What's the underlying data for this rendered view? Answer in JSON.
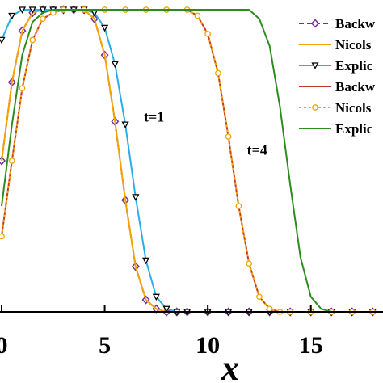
{
  "chart_data": {
    "type": "line",
    "xlabel": "x",
    "xlim": [
      0,
      18.5
    ],
    "ylim": [
      0,
      1
    ],
    "x_ticks": [
      {
        "value": 0,
        "label": "0"
      },
      {
        "value": 5,
        "label": "5"
      },
      {
        "value": 10,
        "label": "10"
      },
      {
        "value": 15,
        "label": "15"
      }
    ],
    "annotations": [
      {
        "text": "t=1",
        "x": 6.9,
        "y": 0.63
      },
      {
        "text": "t=4",
        "x": 11.9,
        "y": 0.52
      }
    ],
    "legend": {
      "position": "top-right"
    },
    "series": [
      {
        "name": "Backw",
        "color": "#7a2f8f",
        "dash": "6,4",
        "marker": "diamond",
        "width": 2,
        "x": [
          0,
          0.5,
          1,
          1.5,
          2,
          2.5,
          3,
          3.5,
          4,
          4.5,
          5,
          5.5,
          6,
          6.5,
          7,
          7.5,
          8,
          8.5,
          9,
          10,
          11,
          12,
          13,
          14,
          15,
          16,
          17,
          18
        ],
        "y": [
          0.5,
          0.76,
          0.93,
          0.99,
          1.0,
          1.0,
          1.0,
          1.0,
          1.0,
          0.97,
          0.85,
          0.63,
          0.37,
          0.15,
          0.04,
          0.01,
          0.0,
          0.0,
          0.0,
          0.0,
          0.0,
          0.0,
          0.0,
          0.0,
          0.0,
          0.0,
          0.0,
          0.0
        ]
      },
      {
        "name": "Nicols",
        "color": "#f2a400",
        "dash": "",
        "marker": "none",
        "width": 2,
        "x": [
          0,
          0.5,
          1,
          1.5,
          2,
          2.5,
          3,
          3.5,
          4,
          4.5,
          5,
          5.5,
          6,
          6.5,
          7,
          7.5,
          8,
          8.5,
          9,
          10,
          11,
          12,
          13,
          14,
          15,
          16,
          17,
          18
        ],
        "y": [
          0.5,
          0.76,
          0.93,
          0.99,
          1.0,
          1.0,
          1.0,
          1.0,
          1.0,
          0.97,
          0.85,
          0.63,
          0.37,
          0.15,
          0.04,
          0.01,
          0.0,
          0.0,
          0.0,
          0.0,
          0.0,
          0.0,
          0.0,
          0.0,
          0.0,
          0.0,
          0.0,
          0.0
        ]
      },
      {
        "name": "Explic",
        "color": "#29aee8",
        "dash": "",
        "marker": "triangle-down",
        "width": 2,
        "x": [
          0,
          0.5,
          1,
          1.5,
          2,
          2.5,
          3,
          3.5,
          4,
          4.5,
          5,
          5.5,
          6,
          6.5,
          7,
          7.5,
          8,
          8.5,
          9,
          10,
          11,
          12,
          13,
          14,
          15,
          16,
          17,
          18
        ],
        "y": [
          0.9,
          0.98,
          1.0,
          1.0,
          1.0,
          1.0,
          1.0,
          1.0,
          1.0,
          0.99,
          0.94,
          0.82,
          0.62,
          0.38,
          0.17,
          0.05,
          0.01,
          0.0,
          0.0,
          0.0,
          0.0,
          0.0,
          0.0,
          0.0,
          0.0,
          0.0,
          0.0,
          0.0
        ]
      },
      {
        "name": "Backw",
        "color": "#c0392b",
        "dash": "",
        "marker": "none",
        "width": 2,
        "x": [
          0,
          0.5,
          1,
          1.5,
          2,
          2.5,
          3,
          4,
          5,
          6,
          7,
          8,
          9,
          9.5,
          10,
          10.5,
          11,
          11.5,
          12,
          12.5,
          13,
          13.5,
          14,
          15,
          16,
          17,
          18
        ],
        "y": [
          0.25,
          0.5,
          0.74,
          0.9,
          0.97,
          0.99,
          1.0,
          1.0,
          1.0,
          1.0,
          1.0,
          1.0,
          1.0,
          0.98,
          0.92,
          0.79,
          0.58,
          0.35,
          0.16,
          0.05,
          0.01,
          0.0,
          0.0,
          0.0,
          0.0,
          0.0,
          0.0
        ]
      },
      {
        "name": "Nicols",
        "color": "#f2a400",
        "dash": "3,3",
        "marker": "circle",
        "width": 2,
        "x": [
          0,
          0.5,
          1,
          1.5,
          2,
          2.5,
          3,
          4,
          5,
          6,
          7,
          8,
          9,
          9.5,
          10,
          10.5,
          11,
          11.5,
          12,
          12.5,
          13,
          13.5,
          14,
          15,
          16,
          17,
          18
        ],
        "y": [
          0.25,
          0.5,
          0.74,
          0.9,
          0.97,
          0.99,
          1.0,
          1.0,
          1.0,
          1.0,
          1.0,
          1.0,
          1.0,
          0.98,
          0.92,
          0.79,
          0.58,
          0.35,
          0.16,
          0.05,
          0.01,
          0.0,
          0.0,
          0.0,
          0.0,
          0.0,
          0.0
        ]
      },
      {
        "name": "Explic",
        "color": "#2e8b1f",
        "dash": "",
        "marker": "none",
        "width": 2,
        "x": [
          0,
          0.5,
          1,
          1.5,
          2,
          2.5,
          3,
          4,
          5,
          6,
          7,
          8,
          9,
          10,
          11,
          12,
          12.5,
          13,
          13.5,
          14,
          14.5,
          15,
          15.5,
          16,
          17,
          18
        ],
        "y": [
          0.35,
          0.62,
          0.85,
          0.96,
          0.99,
          1.0,
          1.0,
          1.0,
          1.0,
          1.0,
          1.0,
          1.0,
          1.0,
          1.0,
          1.0,
          1.0,
          0.97,
          0.88,
          0.68,
          0.42,
          0.18,
          0.05,
          0.01,
          0.0,
          0.0,
          0.0
        ]
      }
    ]
  }
}
